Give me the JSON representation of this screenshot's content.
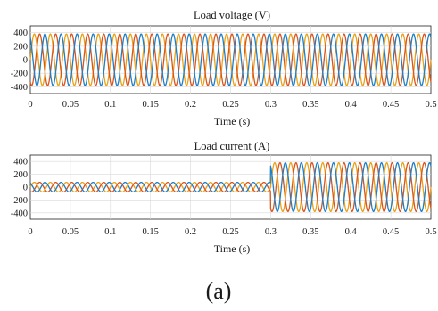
{
  "caption": "(a)",
  "chart_data": [
    {
      "type": "line",
      "title": "Load voltage (V)",
      "xlabel": "Time (s)",
      "ylabel": "",
      "xlim": [
        0,
        0.5
      ],
      "ylim": [
        -500,
        500
      ],
      "x_ticks": [
        0,
        0.05,
        0.1,
        0.15,
        0.2,
        0.25,
        0.3,
        0.35,
        0.4,
        0.45,
        0.5
      ],
      "x_tick_labels": [
        "0",
        "0.05",
        "0.1",
        "0.15",
        "0.2",
        "0.25",
        "0.3",
        "0.35",
        "0.4",
        "0.45",
        "0.5"
      ],
      "y_ticks": [
        400,
        200,
        0,
        -200,
        -400
      ],
      "y_tick_labels": [
        "400",
        "200",
        "0",
        "-200",
        "-400"
      ],
      "grid": true,
      "legend": "none",
      "frequency_hz": 50,
      "series": [
        {
          "color": "#e8a21a",
          "amplitude": [
            [
              0,
              0.5,
              380
            ]
          ],
          "phase_deg": 0
        },
        {
          "color": "#d9541e",
          "amplitude": [
            [
              0,
              0.5,
              380
            ]
          ],
          "phase_deg": -120
        },
        {
          "color": "#1f7fc4",
          "amplitude": [
            [
              0,
              0.5,
              380
            ]
          ],
          "phase_deg": 120
        }
      ]
    },
    {
      "type": "line",
      "title": "Load current (A)",
      "xlabel": "Time (s)",
      "ylabel": "",
      "xlim": [
        0,
        0.5
      ],
      "ylim": [
        -500,
        500
      ],
      "x_ticks": [
        0,
        0.05,
        0.1,
        0.15,
        0.2,
        0.25,
        0.3,
        0.35,
        0.4,
        0.45,
        0.5
      ],
      "x_tick_labels": [
        "0",
        "0.05",
        "0.1",
        "0.15",
        "0.2",
        "0.25",
        "0.3",
        "0.35",
        "0.4",
        "0.45",
        "0.5"
      ],
      "y_ticks": [
        400,
        200,
        0,
        -200,
        -400
      ],
      "y_tick_labels": [
        "400",
        "200",
        "0",
        "-200",
        "-400"
      ],
      "grid": true,
      "legend": "none",
      "frequency_hz": 50,
      "series": [
        {
          "color": "#e8a21a",
          "amplitude": [
            [
              0,
              0.3,
              75
            ],
            [
              0.3,
              0.5,
              380
            ]
          ],
          "phase_deg": 0
        },
        {
          "color": "#d9541e",
          "amplitude": [
            [
              0,
              0.3,
              75
            ],
            [
              0.3,
              0.5,
              380
            ]
          ],
          "phase_deg": -120
        },
        {
          "color": "#1f7fc4",
          "amplitude": [
            [
              0,
              0.3,
              75
            ],
            [
              0.3,
              0.5,
              380
            ]
          ],
          "phase_deg": 120
        }
      ]
    }
  ]
}
